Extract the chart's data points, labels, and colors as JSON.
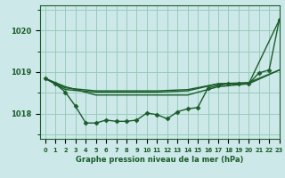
{
  "background_color": "#cce8e8",
  "grid_color": "#99ccbb",
  "line_color": "#1a5c2a",
  "title": "Graphe pression niveau de la mer (hPa)",
  "xlim": [
    -0.5,
    23
  ],
  "ylim": [
    1017.4,
    1020.6
  ],
  "yticks": [
    1018,
    1019,
    1020
  ],
  "series": [
    {
      "x": [
        0,
        1,
        2,
        3,
        4,
        5,
        6,
        7,
        8,
        9,
        10,
        11,
        12,
        13,
        14,
        15,
        16,
        17,
        18,
        19,
        20,
        21,
        22,
        23
      ],
      "y": [
        1018.85,
        1018.72,
        1018.52,
        1018.18,
        1017.78,
        1017.78,
        1017.85,
        1017.82,
        1017.82,
        1017.85,
        1018.02,
        1017.98,
        1017.88,
        1018.05,
        1018.12,
        1018.15,
        1018.62,
        1018.68,
        1018.72,
        1018.72,
        1018.72,
        1018.98,
        1019.05,
        1020.25
      ],
      "marker": "D",
      "markersize": 2.5,
      "linewidth": 1.0
    },
    {
      "x": [
        0,
        2,
        5,
        8,
        11,
        14,
        17,
        20,
        23
      ],
      "y": [
        1018.85,
        1018.65,
        1018.45,
        1018.45,
        1018.45,
        1018.45,
        1018.65,
        1018.72,
        1020.25
      ],
      "marker": null,
      "linewidth": 1.0
    },
    {
      "x": [
        0,
        2,
        5,
        8,
        11,
        14,
        17,
        20,
        23
      ],
      "y": [
        1018.85,
        1018.62,
        1018.55,
        1018.55,
        1018.55,
        1018.58,
        1018.72,
        1018.75,
        1019.05
      ],
      "marker": null,
      "linewidth": 1.0
    },
    {
      "x": [
        0,
        2,
        5,
        8,
        11,
        14,
        17,
        20,
        23
      ],
      "y": [
        1018.85,
        1018.58,
        1018.52,
        1018.52,
        1018.52,
        1018.55,
        1018.72,
        1018.72,
        1019.05
      ],
      "marker": null,
      "linewidth": 1.0
    }
  ]
}
